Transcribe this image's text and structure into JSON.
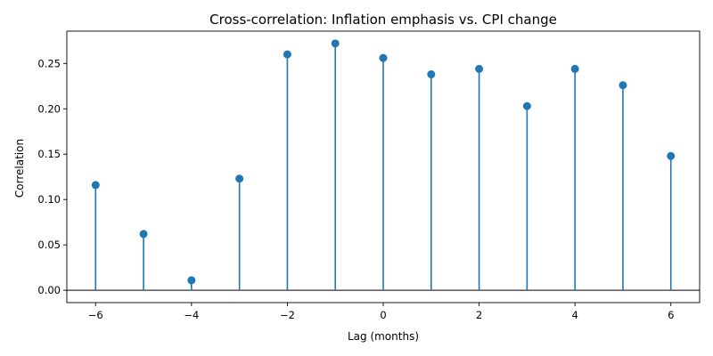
{
  "chart_data": {
    "type": "stem",
    "title": "Cross-correlation: Inflation emphasis vs. CPI change",
    "xlabel": "Lag (months)",
    "ylabel": "Correlation",
    "x": [
      -6,
      -5,
      -4,
      -3,
      -2,
      -1,
      0,
      1,
      2,
      3,
      4,
      5,
      6
    ],
    "values": [
      0.116,
      0.062,
      0.011,
      0.123,
      0.26,
      0.272,
      0.256,
      0.238,
      0.244,
      0.203,
      0.244,
      0.226,
      0.148
    ],
    "xlim": [
      -6.6,
      6.6
    ],
    "ylim": [
      -0.0136,
      0.2856
    ],
    "xticks": [
      -6,
      -4,
      -2,
      0,
      2,
      4,
      6
    ],
    "xtick_labels": [
      "−6",
      "−4",
      "−2",
      "0",
      "2",
      "4",
      "6"
    ],
    "yticks": [
      0.0,
      0.05,
      0.1,
      0.15,
      0.2,
      0.25
    ],
    "ytick_labels": [
      "0.00",
      "0.05",
      "0.10",
      "0.15",
      "0.20",
      "0.25"
    ],
    "baseline": 0,
    "grid": false,
    "color": "#1f77b4",
    "baseline_color": "#000000"
  }
}
